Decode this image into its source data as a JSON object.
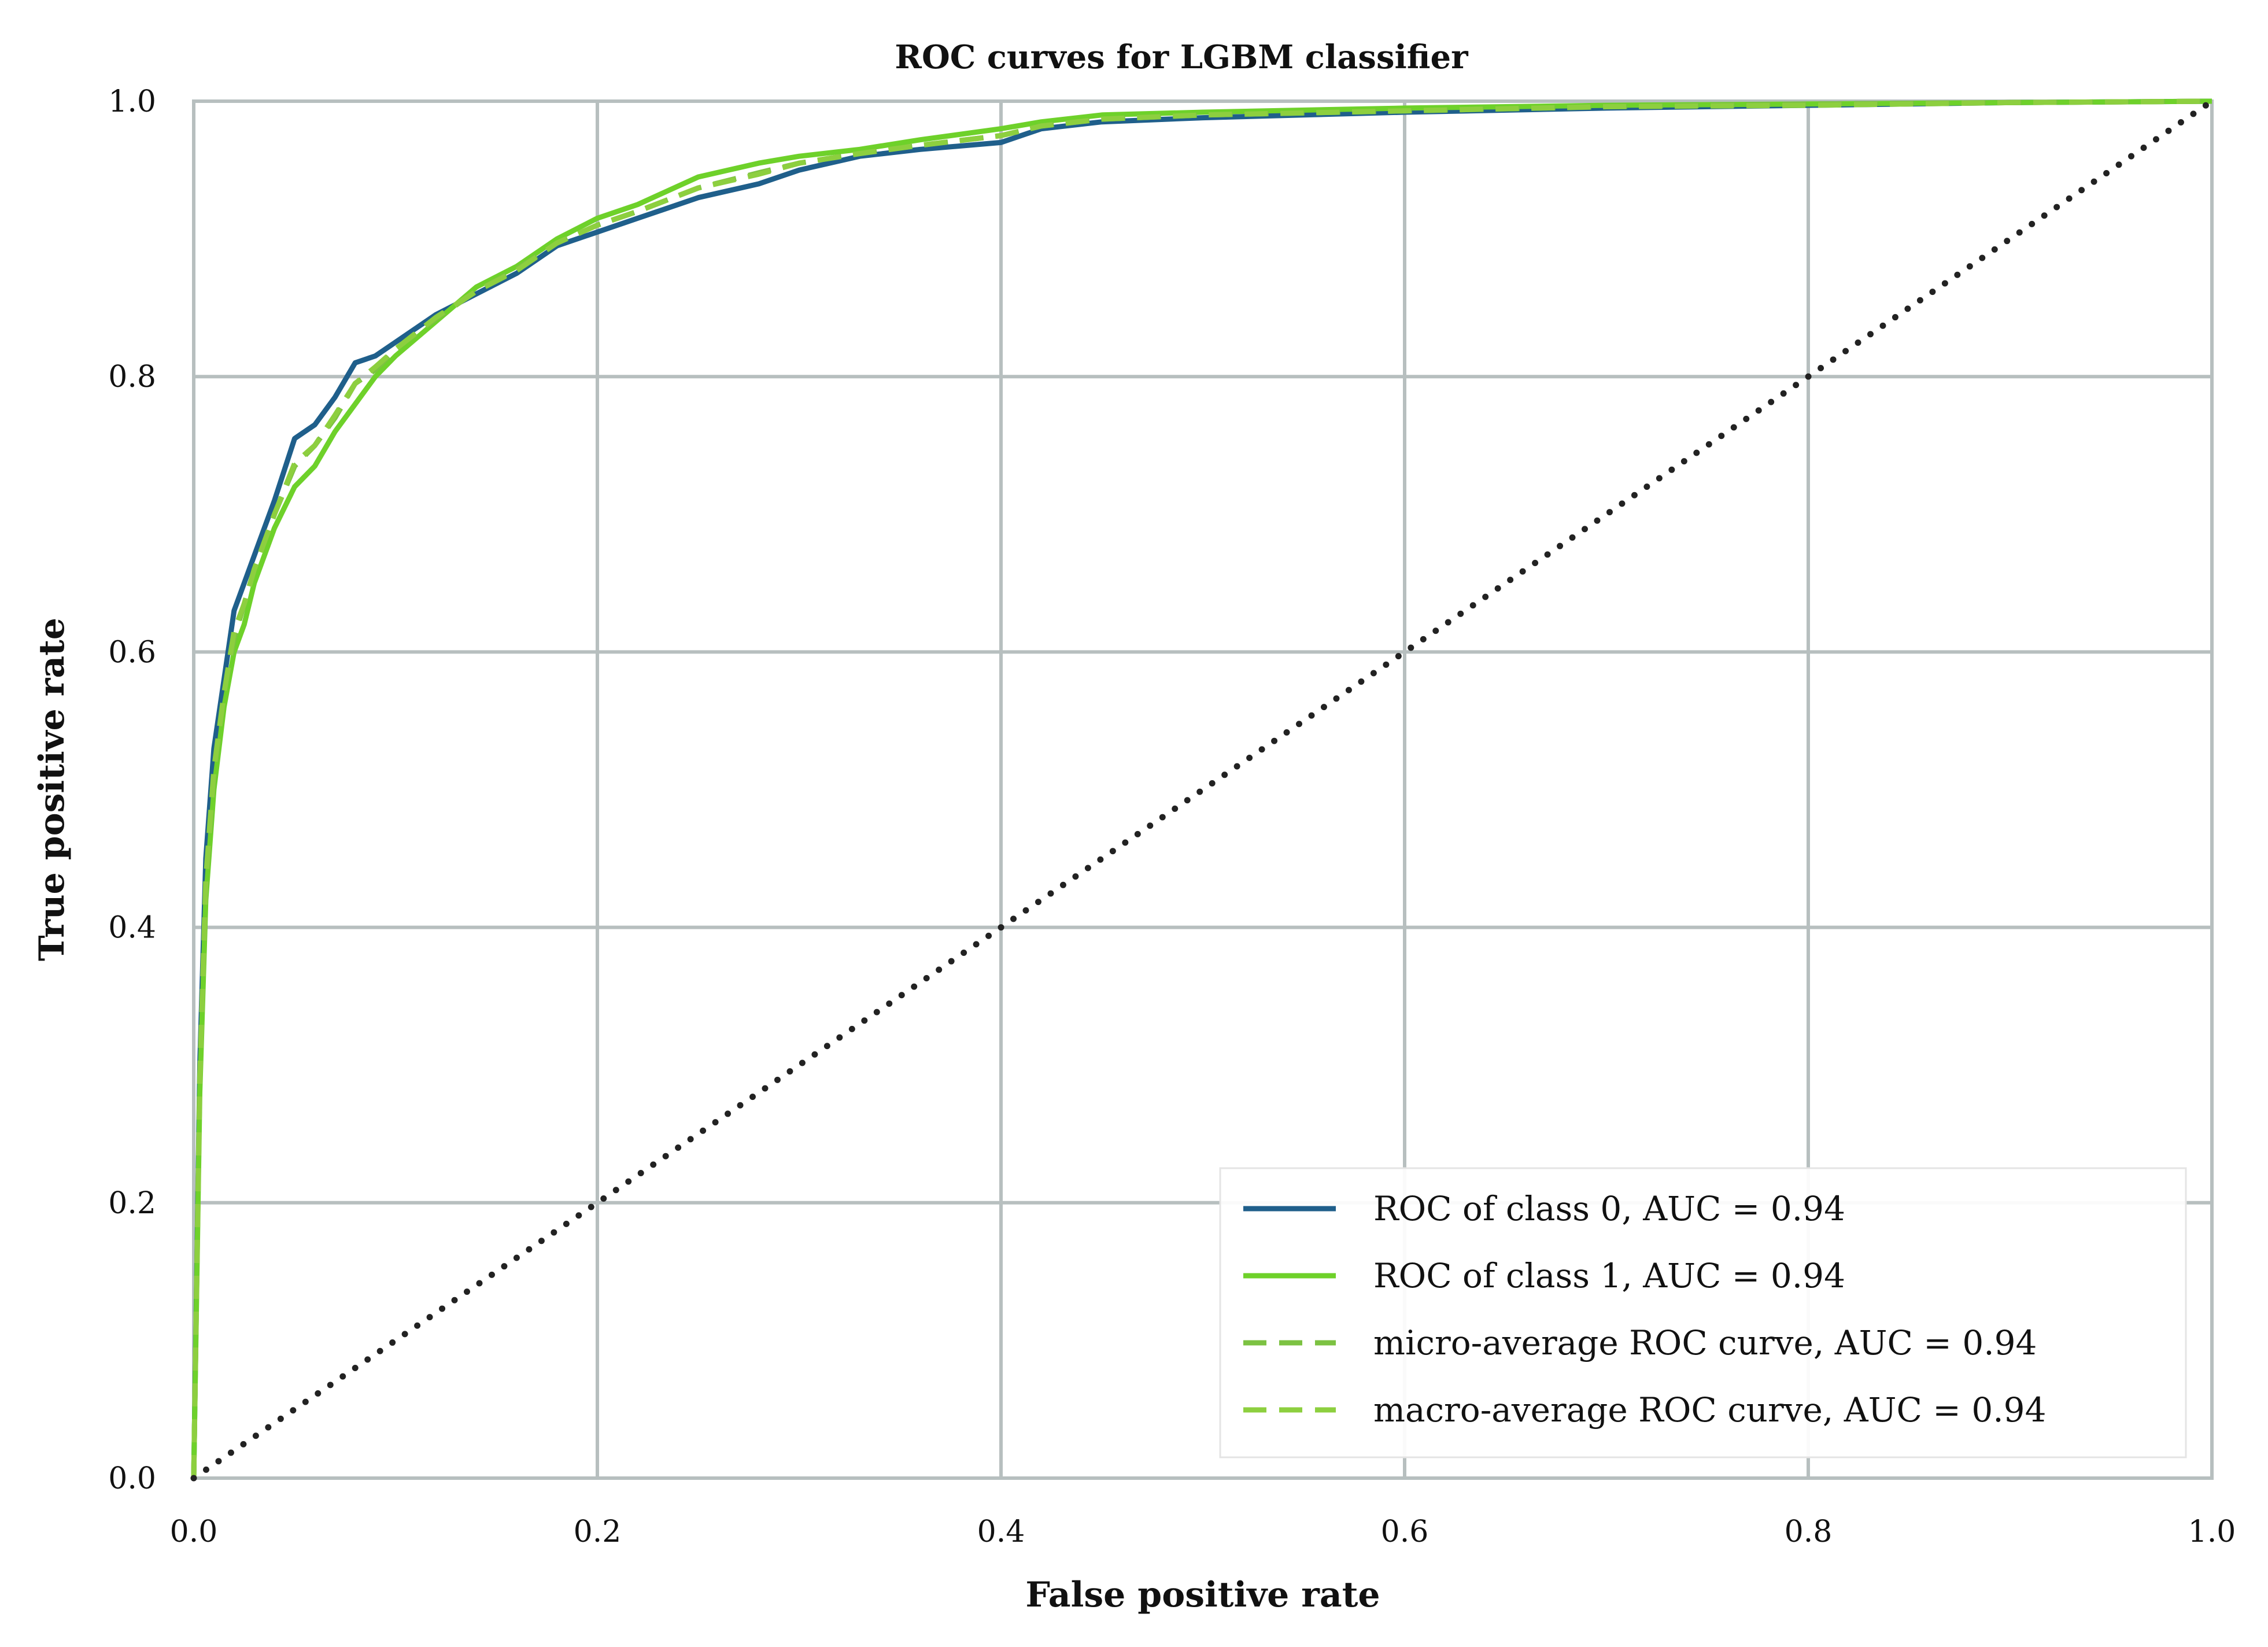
{
  "chart_data": {
    "type": "line",
    "title": "ROC curves for LGBM classifier",
    "xlabel": "False positive rate",
    "ylabel": "True positive rate",
    "xlim": [
      0.0,
      1.0
    ],
    "ylim": [
      0.0,
      1.0
    ],
    "xticks": [
      0.0,
      0.2,
      0.4,
      0.6,
      0.8,
      1.0
    ],
    "yticks": [
      0.0,
      0.2,
      0.4,
      0.6,
      0.8,
      1.0
    ],
    "xtick_labels": [
      "0.0",
      "0.2",
      "0.4",
      "0.6",
      "0.8",
      "1.0"
    ],
    "ytick_labels": [
      "0.0",
      "0.2",
      "0.4",
      "0.6",
      "0.8",
      "1.0"
    ],
    "grid": true,
    "legend_position": "bottom-right",
    "series": [
      {
        "name": "ROC of class 0, AUC = 0.94",
        "color": "#1f5f8b",
        "style": "solid",
        "x": [
          0.0,
          0.003,
          0.006,
          0.01,
          0.015,
          0.02,
          0.025,
          0.03,
          0.04,
          0.05,
          0.06,
          0.07,
          0.08,
          0.09,
          0.1,
          0.12,
          0.14,
          0.16,
          0.18,
          0.2,
          0.22,
          0.25,
          0.28,
          0.3,
          0.33,
          0.36,
          0.4,
          0.42,
          0.45,
          0.5,
          0.6,
          0.7,
          0.8,
          0.9,
          1.0
        ],
        "y": [
          0.0,
          0.3,
          0.45,
          0.53,
          0.58,
          0.63,
          0.65,
          0.67,
          0.71,
          0.755,
          0.765,
          0.785,
          0.81,
          0.815,
          0.825,
          0.845,
          0.86,
          0.875,
          0.895,
          0.905,
          0.915,
          0.93,
          0.94,
          0.95,
          0.96,
          0.965,
          0.97,
          0.98,
          0.985,
          0.988,
          0.992,
          0.995,
          0.997,
          0.999,
          1.0
        ]
      },
      {
        "name": "ROC of class 1, AUC = 0.94",
        "color": "#6ed12a",
        "style": "solid",
        "x": [
          0.0,
          0.003,
          0.006,
          0.01,
          0.015,
          0.02,
          0.025,
          0.03,
          0.04,
          0.05,
          0.06,
          0.07,
          0.08,
          0.09,
          0.1,
          0.12,
          0.14,
          0.16,
          0.18,
          0.2,
          0.22,
          0.25,
          0.28,
          0.3,
          0.33,
          0.36,
          0.4,
          0.42,
          0.45,
          0.5,
          0.6,
          0.7,
          0.8,
          0.9,
          1.0
        ],
        "y": [
          0.0,
          0.28,
          0.42,
          0.5,
          0.56,
          0.6,
          0.62,
          0.65,
          0.69,
          0.72,
          0.735,
          0.76,
          0.78,
          0.8,
          0.815,
          0.84,
          0.865,
          0.88,
          0.9,
          0.915,
          0.925,
          0.945,
          0.955,
          0.96,
          0.965,
          0.972,
          0.98,
          0.985,
          0.99,
          0.992,
          0.995,
          0.997,
          0.998,
          0.999,
          1.0
        ]
      },
      {
        "name": "micro-average ROC curve, AUC = 0.94",
        "color": "#7cc242",
        "style": "dashed",
        "x": [
          0.0,
          0.003,
          0.006,
          0.01,
          0.015,
          0.02,
          0.025,
          0.03,
          0.04,
          0.05,
          0.06,
          0.07,
          0.08,
          0.09,
          0.1,
          0.12,
          0.14,
          0.16,
          0.18,
          0.2,
          0.22,
          0.25,
          0.28,
          0.3,
          0.33,
          0.36,
          0.4,
          0.42,
          0.45,
          0.5,
          0.6,
          0.7,
          0.8,
          0.9,
          1.0
        ],
        "y": [
          0.0,
          0.29,
          0.43,
          0.51,
          0.57,
          0.61,
          0.635,
          0.66,
          0.7,
          0.735,
          0.75,
          0.77,
          0.795,
          0.805,
          0.82,
          0.842,
          0.862,
          0.878,
          0.897,
          0.91,
          0.92,
          0.937,
          0.948,
          0.955,
          0.962,
          0.968,
          0.975,
          0.982,
          0.987,
          0.99,
          0.993,
          0.996,
          0.998,
          0.999,
          1.0
        ]
      },
      {
        "name": "macro-average ROC curve, AUC = 0.94",
        "color": "#8dcf3f",
        "style": "dashed",
        "x": [
          0.0,
          0.003,
          0.006,
          0.01,
          0.015,
          0.02,
          0.025,
          0.03,
          0.04,
          0.05,
          0.06,
          0.07,
          0.08,
          0.09,
          0.1,
          0.12,
          0.14,
          0.16,
          0.18,
          0.2,
          0.22,
          0.25,
          0.28,
          0.3,
          0.33,
          0.36,
          0.4,
          0.42,
          0.45,
          0.5,
          0.6,
          0.7,
          0.8,
          0.9,
          1.0
        ],
        "y": [
          0.0,
          0.29,
          0.435,
          0.515,
          0.57,
          0.615,
          0.635,
          0.66,
          0.7,
          0.737,
          0.75,
          0.772,
          0.795,
          0.807,
          0.82,
          0.843,
          0.862,
          0.877,
          0.897,
          0.91,
          0.92,
          0.937,
          0.947,
          0.955,
          0.962,
          0.968,
          0.975,
          0.982,
          0.987,
          0.99,
          0.993,
          0.996,
          0.997,
          0.999,
          1.0
        ]
      },
      {
        "name": "",
        "color": "#222222",
        "style": "dotted",
        "x": [
          0.0,
          1.0
        ],
        "y": [
          0.0,
          1.0
        ]
      }
    ]
  }
}
